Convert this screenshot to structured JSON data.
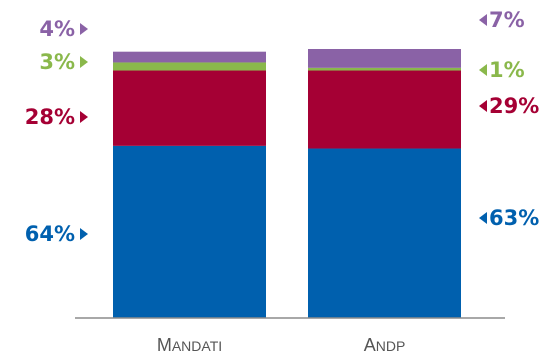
{
  "chart_data": {
    "type": "bar",
    "stacked": true,
    "categories": [
      "Mandati",
      "Andp"
    ],
    "series": [
      {
        "key": "s1",
        "color": "#0060ae",
        "values": [
          64,
          63
        ],
        "labels": [
          "64%",
          "63%"
        ]
      },
      {
        "key": "s2",
        "color": "#a50034",
        "values": [
          28,
          29
        ],
        "labels": [
          "28%",
          "29%"
        ]
      },
      {
        "key": "s3",
        "color": "#8ab84b",
        "values": [
          3,
          1
        ],
        "labels": [
          "3%",
          "1%"
        ]
      },
      {
        "key": "s4",
        "color": "#8a62a6",
        "values": [
          4,
          7
        ],
        "labels": [
          "4%",
          "7%"
        ]
      }
    ],
    "ylim": [
      0,
      100
    ],
    "grid": false,
    "axis_color": "#8c8c8c"
  }
}
